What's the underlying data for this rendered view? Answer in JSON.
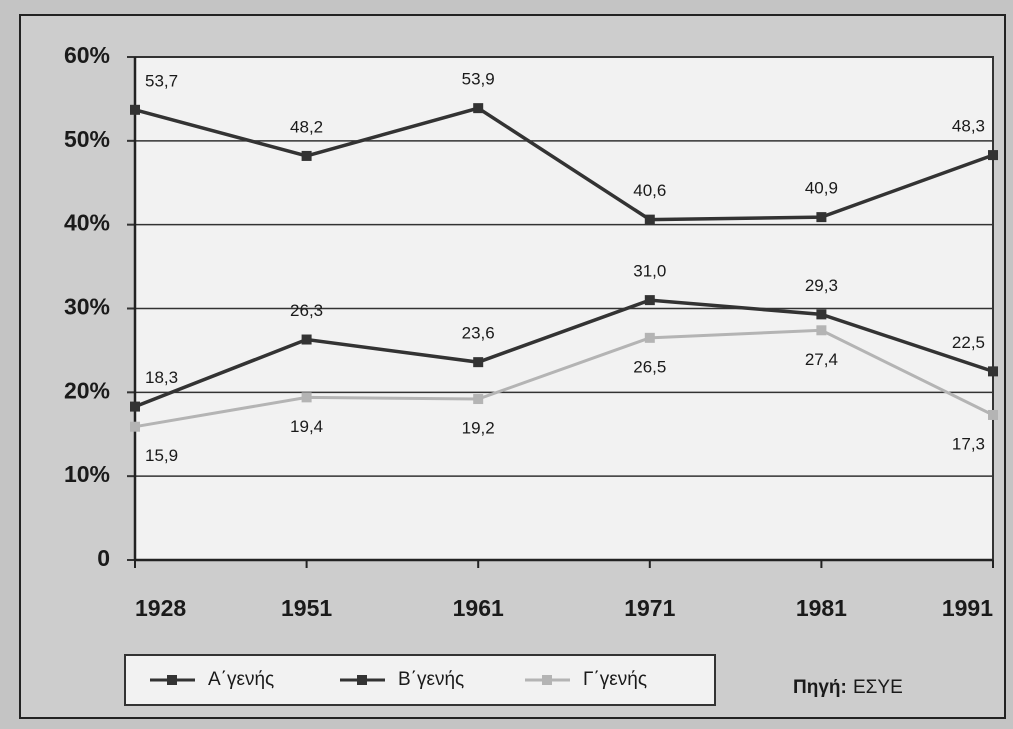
{
  "chart_data": {
    "type": "line",
    "categories": [
      "1928",
      "1951",
      "1961",
      "1971",
      "1981",
      "1991"
    ],
    "series": [
      {
        "name": "Α΄γενής",
        "color": "#333333",
        "values": [
          53.7,
          48.2,
          53.9,
          40.6,
          40.9,
          48.3
        ],
        "value_labels": [
          "53,7",
          "48,2",
          "53,9",
          "40,6",
          "40,9",
          "48,3"
        ]
      },
      {
        "name": "Β΄γενής",
        "color": "#333333",
        "values": [
          18.3,
          26.3,
          23.6,
          31.0,
          29.3,
          22.5
        ],
        "value_labels": [
          "18,3",
          "26,3",
          "23,6",
          "31,0",
          "29,3",
          "22,5"
        ]
      },
      {
        "name": "Γ΄γενής",
        "color": "#b4b4b4",
        "values": [
          15.9,
          19.4,
          19.2,
          26.5,
          27.4,
          17.3
        ],
        "value_labels": [
          "15,9",
          "19,4",
          "19,2",
          "26,5",
          "27,4",
          "17,3"
        ]
      }
    ],
    "ylim": [
      0,
      60
    ],
    "yticks": [
      0,
      {
        "value": 10,
        "label": "10%"
      },
      {
        "value": 20,
        "label": "20%"
      },
      {
        "value": 30,
        "label": "30%"
      },
      {
        "value": 40,
        "label": "40%"
      },
      {
        "value": 50,
        "label": "50%"
      },
      {
        "value": 60,
        "label": "60%"
      }
    ],
    "grid": true,
    "source_label": "Πηγή:",
    "source": "ΕΣΥΕ"
  }
}
